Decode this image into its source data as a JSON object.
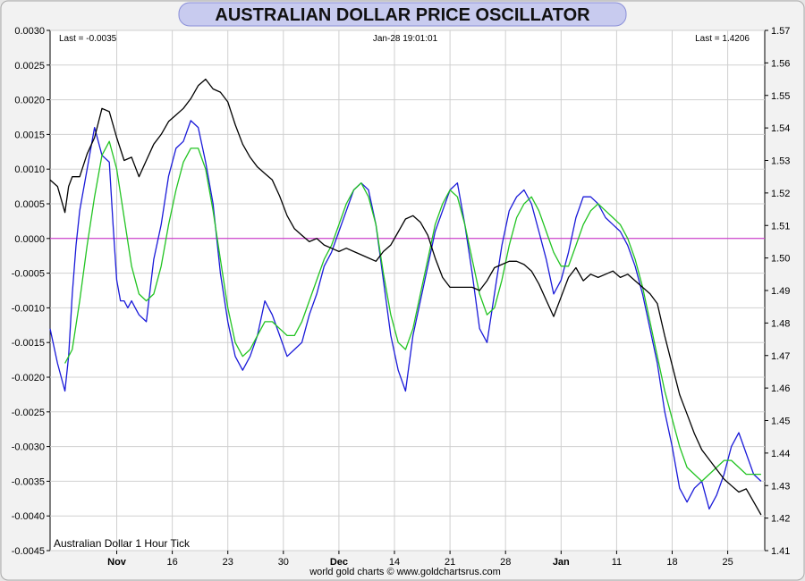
{
  "chart_data": {
    "type": "line",
    "title": "AUSTRALIAN DOLLAR PRICE OSCILLATOR",
    "info": {
      "left": "Last = -0.0035",
      "center": "Jan-28  19:01:01",
      "right": "Last = 1.4206"
    },
    "legend": "Australian Dollar 1 Hour Tick",
    "footer": "world gold charts © www.goldchartsrus.com",
    "x_ticks": [
      {
        "label": "Nov",
        "bold": true,
        "x": 18
      },
      {
        "label": "16",
        "bold": false,
        "x": 33
      },
      {
        "label": "23",
        "bold": false,
        "x": 48
      },
      {
        "label": "30",
        "bold": false,
        "x": 63
      },
      {
        "label": "Dec",
        "bold": true,
        "x": 78
      },
      {
        "label": "14",
        "bold": false,
        "x": 93
      },
      {
        "label": "21",
        "bold": false,
        "x": 108
      },
      {
        "label": "28",
        "bold": false,
        "x": 123
      },
      {
        "label": "Jan",
        "bold": true,
        "x": 138
      },
      {
        "label": "11",
        "bold": false,
        "x": 153
      },
      {
        "label": "18",
        "bold": false,
        "x": 168
      },
      {
        "label": "25",
        "bold": false,
        "x": 183
      }
    ],
    "xlim": [
      0,
      193
    ],
    "y_left": {
      "ylim": [
        -0.0045,
        0.003
      ],
      "ticks": [
        "0.0030",
        "0.0025",
        "0.0020",
        "0.0015",
        "0.0010",
        "0.0005",
        "0.0000",
        "-0.0005",
        "-0.0010",
        "-0.0015",
        "-0.0020",
        "-0.0025",
        "-0.0030",
        "-0.0035",
        "-0.0040",
        "-0.0045"
      ]
    },
    "y_right": {
      "ylim": [
        1.41,
        1.57
      ],
      "ticks": [
        "1.57",
        "1.56",
        "1.55",
        "1.54",
        "1.53",
        "1.52",
        "1.51",
        "1.50",
        "1.49",
        "1.48",
        "1.47",
        "1.46",
        "1.45",
        "1.44",
        "1.43",
        "1.42",
        "1.41"
      ]
    },
    "zero_line": 0,
    "series": [
      {
        "color": "#1a1ad9",
        "axis": "left",
        "x": [
          0,
          2,
          4,
          5,
          6,
          7,
          8,
          10,
          12,
          14,
          16,
          17,
          18,
          19,
          20,
          21,
          22,
          23,
          24,
          26,
          28,
          30,
          32,
          34,
          36,
          38,
          40,
          42,
          44,
          46,
          48,
          50,
          52,
          54,
          56,
          58,
          60,
          62,
          64,
          66,
          68,
          70,
          72,
          74,
          76,
          78,
          80,
          82,
          84,
          86,
          88,
          90,
          92,
          94,
          96,
          98,
          100,
          102,
          104,
          106,
          108,
          110,
          112,
          114,
          116,
          118,
          120,
          122,
          124,
          126,
          128,
          130,
          132,
          134,
          136,
          138,
          140,
          142,
          144,
          146,
          148,
          150,
          152,
          154,
          156,
          158,
          160,
          162,
          164,
          166,
          168,
          170,
          172,
          174,
          176,
          178,
          180,
          182,
          184,
          186,
          188,
          190,
          192
        ],
        "values": [
          -0.0013,
          -0.0018,
          -0.0022,
          -0.0017,
          -0.0008,
          -0.0001,
          0.0004,
          0.001,
          0.0016,
          0.0012,
          0.0011,
          0.0002,
          -0.0006,
          -0.0009,
          -0.0009,
          -0.001,
          -0.0009,
          -0.001,
          -0.0011,
          -0.0012,
          -0.0003,
          0.0002,
          0.0009,
          0.0013,
          0.0014,
          0.0017,
          0.0016,
          0.0011,
          0.0005,
          -0.0005,
          -0.0012,
          -0.0017,
          -0.0019,
          -0.0017,
          -0.0014,
          -0.0009,
          -0.0011,
          -0.0014,
          -0.0017,
          -0.0016,
          -0.0015,
          -0.0011,
          -0.0008,
          -0.0004,
          -0.0002,
          0.0001,
          0.0004,
          0.0007,
          0.0008,
          0.0007,
          0.0002,
          -0.0006,
          -0.0014,
          -0.0019,
          -0.0022,
          -0.0014,
          -0.0009,
          -0.0004,
          0.0001,
          0.0004,
          0.0007,
          0.0008,
          0.0002,
          -0.0005,
          -0.0013,
          -0.0015,
          -0.0008,
          -0.0001,
          0.0004,
          0.0006,
          0.0007,
          0.0005,
          0.0001,
          -0.0003,
          -0.0008,
          -0.0006,
          -0.0002,
          0.0003,
          0.0006,
          0.0006,
          0.0005,
          0.0003,
          0.0002,
          0.0001,
          -0.0001,
          -0.0004,
          -0.0008,
          -0.0013,
          -0.0018,
          -0.0025,
          -0.003,
          -0.0036,
          -0.0038,
          -0.0036,
          -0.0035,
          -0.0039,
          -0.0037,
          -0.0034,
          -0.003,
          -0.0028,
          -0.0031,
          -0.0034,
          -0.0035
        ]
      },
      {
        "color": "#22c422",
        "axis": "left",
        "x": [
          4,
          6,
          8,
          10,
          12,
          14,
          16,
          18,
          20,
          22,
          24,
          26,
          28,
          30,
          32,
          34,
          36,
          38,
          40,
          42,
          44,
          46,
          48,
          50,
          52,
          54,
          56,
          58,
          60,
          62,
          64,
          66,
          68,
          70,
          72,
          74,
          76,
          78,
          80,
          82,
          84,
          86,
          88,
          90,
          92,
          94,
          96,
          98,
          100,
          102,
          104,
          106,
          108,
          110,
          112,
          114,
          116,
          118,
          120,
          122,
          124,
          126,
          128,
          130,
          132,
          134,
          136,
          138,
          140,
          142,
          144,
          146,
          148,
          150,
          152,
          154,
          156,
          158,
          160,
          162,
          164,
          166,
          168,
          170,
          172,
          174,
          176,
          178,
          180,
          182,
          184,
          186,
          188,
          190,
          192
        ],
        "values": [
          -0.0018,
          -0.0016,
          -0.0009,
          -0.0001,
          0.0006,
          0.0012,
          0.0014,
          0.001,
          0.0003,
          -0.0004,
          -0.0008,
          -0.0009,
          -0.0008,
          -0.0004,
          0.0002,
          0.0007,
          0.0011,
          0.0013,
          0.0013,
          0.001,
          0.0004,
          -0.0003,
          -0.001,
          -0.0015,
          -0.0017,
          -0.0016,
          -0.0014,
          -0.0012,
          -0.0012,
          -0.0013,
          -0.0014,
          -0.0014,
          -0.0012,
          -0.0009,
          -0.0006,
          -0.0003,
          -0.0001,
          0.0002,
          0.0005,
          0.0007,
          0.0008,
          0.0006,
          0.0002,
          -0.0005,
          -0.0011,
          -0.0015,
          -0.0016,
          -0.0013,
          -0.0008,
          -0.0003,
          0.0002,
          0.0005,
          0.0007,
          0.0006,
          0.0002,
          -0.0003,
          -0.0008,
          -0.0011,
          -0.001,
          -0.0006,
          -0.0001,
          0.0003,
          0.0005,
          0.0006,
          0.0004,
          0.0001,
          -0.0002,
          -0.0004,
          -0.0004,
          -0.0001,
          0.0002,
          0.0004,
          0.0005,
          0.0004,
          0.0003,
          0.0002,
          0.0,
          -0.0003,
          -0.0007,
          -0.0012,
          -0.0017,
          -0.0022,
          -0.0026,
          -0.003,
          -0.0033,
          -0.0034,
          -0.0035,
          -0.0034,
          -0.0033,
          -0.0032,
          -0.0032,
          -0.0033,
          -0.0034,
          -0.0034,
          -0.0034
        ]
      },
      {
        "color": "#000000",
        "axis": "right",
        "x": [
          0,
          2,
          4,
          5,
          6,
          8,
          10,
          12,
          14,
          16,
          18,
          20,
          22,
          24,
          26,
          28,
          30,
          32,
          34,
          36,
          38,
          40,
          42,
          44,
          46,
          48,
          50,
          52,
          54,
          56,
          58,
          60,
          62,
          64,
          66,
          68,
          70,
          72,
          74,
          76,
          78,
          80,
          82,
          84,
          86,
          88,
          90,
          92,
          94,
          96,
          98,
          100,
          102,
          104,
          106,
          108,
          110,
          112,
          114,
          116,
          118,
          120,
          122,
          124,
          126,
          128,
          130,
          132,
          134,
          136,
          138,
          140,
          142,
          144,
          146,
          148,
          150,
          152,
          154,
          156,
          158,
          160,
          162,
          164,
          166,
          168,
          170,
          172,
          174,
          176,
          178,
          180,
          182,
          184,
          186,
          188,
          190,
          192
        ],
        "values": [
          1.524,
          1.522,
          1.514,
          1.522,
          1.525,
          1.525,
          1.532,
          1.537,
          1.546,
          1.545,
          1.537,
          1.53,
          1.531,
          1.525,
          1.53,
          1.535,
          1.538,
          1.542,
          1.544,
          1.546,
          1.549,
          1.553,
          1.555,
          1.552,
          1.551,
          1.548,
          1.541,
          1.535,
          1.531,
          1.528,
          1.526,
          1.524,
          1.519,
          1.513,
          1.509,
          1.507,
          1.505,
          1.506,
          1.504,
          1.503,
          1.502,
          1.503,
          1.502,
          1.501,
          1.5,
          1.499,
          1.502,
          1.504,
          1.508,
          1.512,
          1.513,
          1.511,
          1.507,
          1.5,
          1.494,
          1.491,
          1.491,
          1.491,
          1.491,
          1.49,
          1.493,
          1.497,
          1.498,
          1.499,
          1.499,
          1.498,
          1.496,
          1.492,
          1.487,
          1.482,
          1.488,
          1.494,
          1.497,
          1.493,
          1.495,
          1.494,
          1.495,
          1.496,
          1.494,
          1.495,
          1.493,
          1.491,
          1.489,
          1.486,
          1.476,
          1.467,
          1.458,
          1.452,
          1.446,
          1.441,
          1.438,
          1.435,
          1.432,
          1.43,
          1.428,
          1.429,
          1.425,
          1.421
        ]
      }
    ]
  }
}
